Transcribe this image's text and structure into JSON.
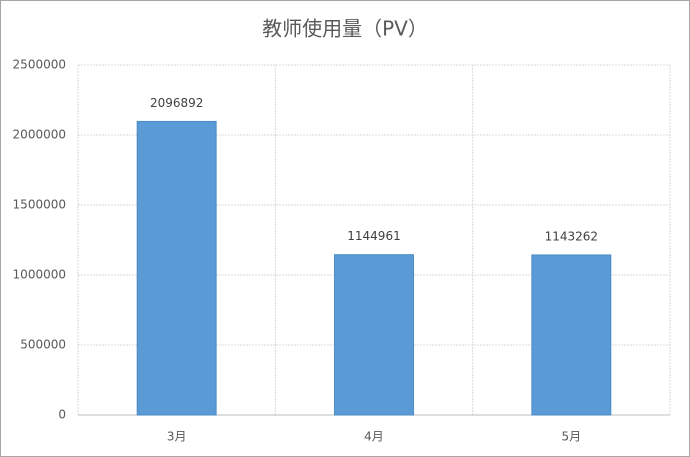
{
  "chart_data": {
    "type": "bar",
    "title": "教师使用量（PV）",
    "categories": [
      "3月",
      "4月",
      "5月"
    ],
    "values": [
      2096892,
      1144961,
      1143262
    ],
    "color": "#5b9bd5",
    "ylim": [
      0,
      2500000
    ],
    "yticks": [
      0,
      500000,
      1000000,
      1500000,
      2000000,
      2500000
    ],
    "grid": true
  }
}
